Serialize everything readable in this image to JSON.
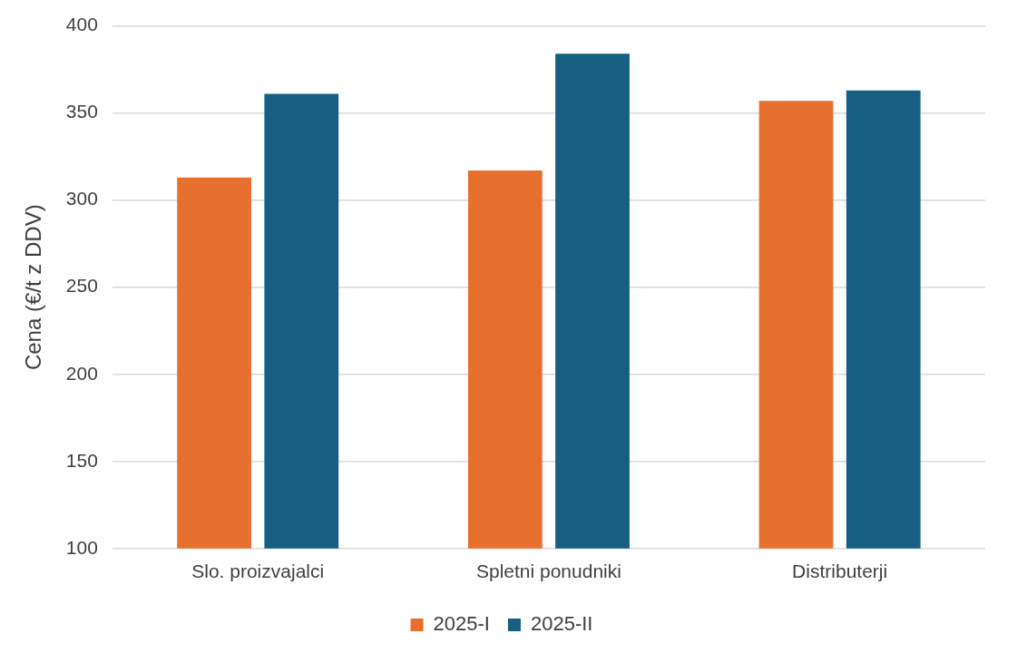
{
  "chart_data": {
    "type": "bar",
    "ylabel": "Cena (€/t z DDV)",
    "categories": [
      "Slo. proizvajalci",
      "Spletni ponudniki",
      "Distributerji"
    ],
    "series": [
      {
        "name": "2025-I",
        "color": "#e8702f",
        "values": [
          313,
          317,
          357
        ]
      },
      {
        "name": "2025-II",
        "color": "#175f82",
        "values": [
          361,
          384,
          363
        ]
      }
    ],
    "ylim": [
      100,
      400
    ],
    "yticks": [
      100,
      150,
      200,
      250,
      300,
      350,
      400
    ],
    "grid": "y",
    "legend": "bottom"
  }
}
